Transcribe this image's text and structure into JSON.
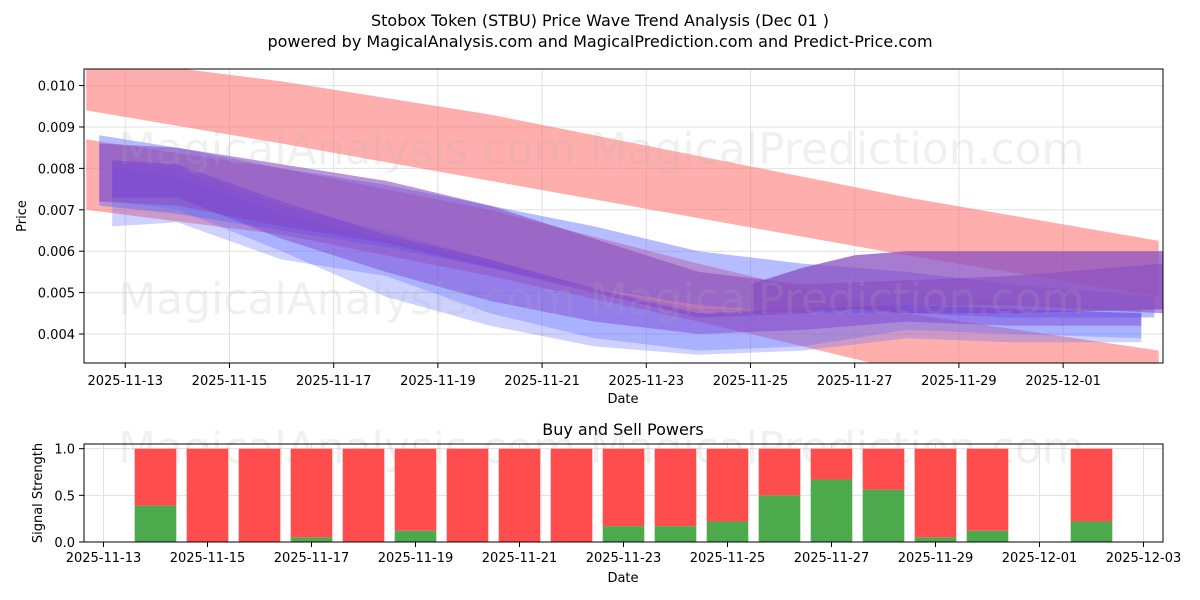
{
  "header": {
    "title": "Stobox Token (STBU) Price Wave Trend Analysis (Dec 01 )",
    "subtitle": "powered by MagicalAnalysis.com and MagicalPrediction.com and Predict-Price.com"
  },
  "watermarks": [
    "MagicalAnalysis.com",
    "MagicalPrediction.com"
  ],
  "colors": {
    "red_band": "#ff6b6b",
    "blue_band": "#5b6bff",
    "purple_band": "#8a4fc0",
    "buy": "#4caa4c",
    "sell": "#ff4c4c",
    "grid": "#e0e0e0"
  },
  "chart_data": [
    {
      "type": "area",
      "title": "",
      "xlabel": "Date",
      "ylabel": "Price",
      "ylim": [
        0.0033,
        0.0104
      ],
      "x_range": [
        "2025-11-12T05:00",
        "2025-12-02T22:00"
      ],
      "grid": true,
      "x_ticks": [
        "2025-11-13",
        "2025-11-15",
        "2025-11-17",
        "2025-11-19",
        "2025-11-21",
        "2025-11-23",
        "2025-11-25",
        "2025-11-27",
        "2025-11-29",
        "2025-12-01"
      ],
      "y_ticks": [
        0.004,
        0.005,
        0.006,
        0.007,
        0.008,
        0.009,
        0.01
      ],
      "y_tick_labels": [
        "0.004",
        "0.005",
        "0.006",
        "0.007",
        "0.008",
        "0.009",
        "0.010"
      ],
      "series": [
        {
          "name": "upper-red-band",
          "color": "#ff6b6b",
          "x": [
            "2025-11-12T06:00",
            "2025-11-16",
            "2025-11-20",
            "2025-11-24",
            "2025-11-28",
            "2025-12-02T20:00"
          ],
          "upper": [
            0.0107,
            0.0101,
            0.0093,
            0.0083,
            0.0073,
            0.00625
          ],
          "lower": [
            0.0094,
            0.0086,
            0.0077,
            0.0068,
            0.0059,
            0.0049
          ]
        },
        {
          "name": "lower-red-band",
          "color": "#ff6b6b",
          "x": [
            "2025-11-12T06:00",
            "2025-11-16",
            "2025-11-20",
            "2025-11-24",
            "2025-11-28",
            "2025-12-02T20:00"
          ],
          "upper": [
            0.0087,
            0.008,
            0.007,
            0.0057,
            0.0045,
            0.0036
          ],
          "lower": [
            0.007,
            0.0064,
            0.0054,
            0.0043,
            0.0031,
            0.0021
          ]
        },
        {
          "name": "blue-wave-1",
          "color": "#5b6bff",
          "x": [
            "2025-11-12T12:00",
            "2025-11-14",
            "2025-11-16",
            "2025-11-18",
            "2025-11-20",
            "2025-11-22",
            "2025-11-24",
            "2025-11-26",
            "2025-11-28",
            "2025-11-30",
            "2025-12-02T18:00"
          ],
          "upper": [
            0.0088,
            0.0085,
            0.008,
            0.0076,
            0.0071,
            0.0066,
            0.006,
            0.0057,
            0.0055,
            0.0052,
            0.0049
          ],
          "lower": [
            0.0071,
            0.0069,
            0.0065,
            0.0061,
            0.0056,
            0.0051,
            0.0047,
            0.0045,
            0.0045,
            0.0044,
            0.0044
          ]
        },
        {
          "name": "blue-wave-2",
          "color": "#5b6bff",
          "x": [
            "2025-11-12T18:00",
            "2025-11-14",
            "2025-11-16",
            "2025-11-18",
            "2025-11-20",
            "2025-11-22",
            "2025-11-24",
            "2025-11-26",
            "2025-11-28",
            "2025-11-30",
            "2025-12-02T12:00"
          ],
          "upper": [
            0.0082,
            0.008,
            0.0071,
            0.0065,
            0.0058,
            0.0051,
            0.0046,
            0.0046,
            0.005,
            0.0048,
            0.0046
          ],
          "lower": [
            0.0066,
            0.0067,
            0.0058,
            0.0054,
            0.0045,
            0.0039,
            0.0036,
            0.0037,
            0.0041,
            0.004,
            0.0039
          ]
        },
        {
          "name": "blue-wave-3",
          "color": "#5b6bff",
          "x": [
            "2025-11-12T18:00",
            "2025-11-14",
            "2025-11-16",
            "2025-11-18",
            "2025-11-20",
            "2025-11-22",
            "2025-11-24",
            "2025-11-26",
            "2025-11-28",
            "2025-11-30",
            "2025-12-02T12:00"
          ],
          "upper": [
            0.008,
            0.0078,
            0.0069,
            0.0063,
            0.0057,
            0.005,
            0.0045,
            0.0045,
            0.0048,
            0.0046,
            0.0045
          ],
          "lower": [
            0.0072,
            0.007,
            0.006,
            0.0049,
            0.0042,
            0.0037,
            0.0035,
            0.0036,
            0.0039,
            0.0038,
            0.0038
          ]
        },
        {
          "name": "purple-upper-band",
          "color": "#8a4fc0",
          "x": [
            "2025-11-12T12:00",
            "2025-11-14",
            "2025-11-16",
            "2025-11-18",
            "2025-11-20",
            "2025-11-22",
            "2025-11-24",
            "2025-11-26",
            "2025-11-28",
            "2025-11-30",
            "2025-12-02T22:00"
          ],
          "upper": [
            0.0086,
            0.0085,
            0.0081,
            0.0077,
            0.0071,
            0.0063,
            0.0055,
            0.0052,
            0.0053,
            0.0054,
            0.0057
          ],
          "lower": [
            0.0072,
            0.0071,
            0.0066,
            0.0062,
            0.0056,
            0.005,
            0.0044,
            0.0045,
            0.0047,
            0.0047,
            0.0045
          ]
        },
        {
          "name": "purple-right-band",
          "color": "#8a4fc0",
          "x": [
            "2025-11-25",
            "2025-11-26",
            "2025-11-27",
            "2025-11-28",
            "2025-11-30",
            "2025-12-02T22:00"
          ],
          "upper": [
            0.0052,
            0.0056,
            0.0059,
            0.006,
            0.006,
            0.006
          ],
          "lower": [
            0.0045,
            0.0046,
            0.0046,
            0.0045,
            0.0045,
            0.0046
          ]
        },
        {
          "name": "purple-main-wave",
          "color": "#7a3fd0",
          "x": [
            "2025-11-12T18:00",
            "2025-11-14",
            "2025-11-16",
            "2025-11-18",
            "2025-11-20",
            "2025-11-22",
            "2025-11-24",
            "2025-11-26",
            "2025-11-28",
            "2025-11-30",
            "2025-12-02T12:00"
          ],
          "upper": [
            0.0082,
            0.0081,
            0.0072,
            0.0064,
            0.0058,
            0.0051,
            0.0045,
            0.0046,
            0.0047,
            0.0046,
            0.0045
          ],
          "lower": [
            0.0073,
            0.0073,
            0.0063,
            0.0055,
            0.0048,
            0.0043,
            0.004,
            0.0041,
            0.0043,
            0.0042,
            0.0042
          ]
        }
      ]
    },
    {
      "type": "bar",
      "title": "Buy and Sell Powers",
      "xlabel": "Date",
      "ylabel": "Signal Strength",
      "ylim": [
        0,
        1.05
      ],
      "x_range": [
        "2025-11-12T15:00",
        "2025-12-03T09:00"
      ],
      "grid": true,
      "x_ticks": [
        "2025-11-13",
        "2025-11-15",
        "2025-11-17",
        "2025-11-19",
        "2025-11-21",
        "2025-11-23",
        "2025-11-25",
        "2025-11-27",
        "2025-11-29",
        "2025-12-01",
        "2025-12-03"
      ],
      "y_ticks": [
        0.0,
        0.5,
        1.0
      ],
      "y_tick_labels": [
        "0.0",
        "0.5",
        "1.0"
      ],
      "categories": [
        "2025-11-14",
        "2025-11-15",
        "2025-11-16",
        "2025-11-17",
        "2025-11-18",
        "2025-11-19",
        "2025-11-20",
        "2025-11-21",
        "2025-11-22",
        "2025-11-23",
        "2025-11-24",
        "2025-11-25",
        "2025-11-26",
        "2025-11-27",
        "2025-11-28",
        "2025-11-29",
        "2025-11-30",
        "2025-12-02"
      ],
      "series": [
        {
          "name": "Buy",
          "color": "#4caa4c",
          "values": [
            0.39,
            0.0,
            0.0,
            0.05,
            0.0,
            0.12,
            0.0,
            0.0,
            0.0,
            0.17,
            0.17,
            0.22,
            0.5,
            0.67,
            0.56,
            0.05,
            0.12,
            0.22
          ]
        },
        {
          "name": "Sell",
          "color": "#ff4c4c",
          "values": [
            0.61,
            1.0,
            1.0,
            0.95,
            1.0,
            0.88,
            1.0,
            1.0,
            1.0,
            0.83,
            0.83,
            0.78,
            0.5,
            0.33,
            0.44,
            0.95,
            0.88,
            0.78
          ]
        }
      ]
    }
  ]
}
